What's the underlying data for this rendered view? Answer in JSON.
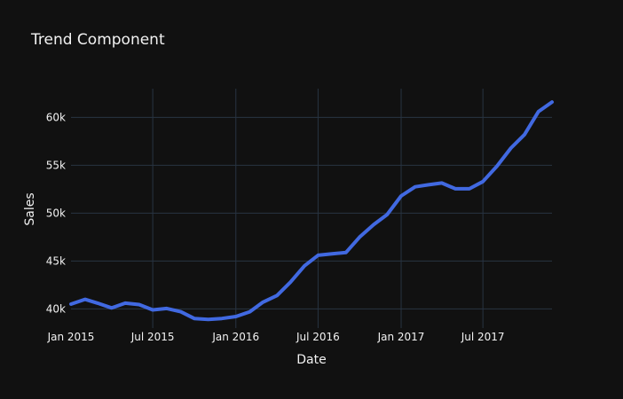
{
  "chart_data": {
    "type": "line",
    "title": "Trend Component",
    "xlabel": "Date",
    "ylabel": "Sales",
    "grid": true,
    "line_color": "#4169e1",
    "background": "#111111",
    "grid_color": "#283442",
    "text_color": "#f2f2f2",
    "xlim": [
      "2015-01-01",
      "2017-12-01"
    ],
    "ylim": [
      38000,
      63000
    ],
    "x_ticks": [
      {
        "date": "2015-01-01",
        "label": "Jan 2015"
      },
      {
        "date": "2015-07-01",
        "label": "Jul 2015"
      },
      {
        "date": "2016-01-01",
        "label": "Jan 2016"
      },
      {
        "date": "2016-07-01",
        "label": "Jul 2016"
      },
      {
        "date": "2017-01-01",
        "label": "Jan 2017"
      },
      {
        "date": "2017-07-01",
        "label": "Jul 2017"
      }
    ],
    "y_ticks": [
      {
        "value": 40000,
        "label": "40k"
      },
      {
        "value": 45000,
        "label": "45k"
      },
      {
        "value": 50000,
        "label": "50k"
      },
      {
        "value": 55000,
        "label": "55k"
      },
      {
        "value": 60000,
        "label": "60k"
      }
    ],
    "x": [
      "2015-01-01",
      "2015-02-01",
      "2015-03-01",
      "2015-04-01",
      "2015-05-01",
      "2015-06-01",
      "2015-07-01",
      "2015-08-01",
      "2015-09-01",
      "2015-10-01",
      "2015-11-01",
      "2015-12-01",
      "2016-01-01",
      "2016-02-01",
      "2016-03-01",
      "2016-04-01",
      "2016-05-01",
      "2016-06-01",
      "2016-07-01",
      "2016-08-01",
      "2016-09-01",
      "2016-10-01",
      "2016-11-01",
      "2016-12-01",
      "2017-01-01",
      "2017-02-01",
      "2017-03-01",
      "2017-04-01",
      "2017-05-01",
      "2017-06-01",
      "2017-07-01",
      "2017-08-01",
      "2017-09-01",
      "2017-10-01",
      "2017-11-01",
      "2017-12-01"
    ],
    "y": [
      40500,
      41000,
      40600,
      40100,
      40600,
      40450,
      39900,
      40050,
      39700,
      39000,
      38900,
      39000,
      39200,
      39700,
      40700,
      41400,
      42800,
      44500,
      45600,
      45750,
      45900,
      47500,
      48800,
      49850,
      51800,
      52750,
      52950,
      53150,
      52550,
      52550,
      53300,
      54900,
      56800,
      58200,
      60600,
      61600
    ]
  }
}
